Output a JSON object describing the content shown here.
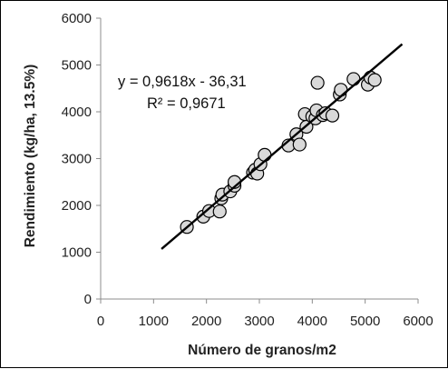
{
  "chart_data": {
    "type": "scatter",
    "title": "",
    "xlabel": "Número de granos/m2",
    "ylabel": "Rendimiento (kg/ha, 13.5%)",
    "xlim": [
      0,
      6000
    ],
    "ylim": [
      0,
      6000
    ],
    "x_ticks": [
      "0",
      "1000",
      "2000",
      "3000",
      "4000",
      "5000",
      "6000"
    ],
    "y_ticks": [
      "0",
      "1000",
      "2000",
      "3000",
      "4000",
      "5000",
      "6000"
    ],
    "grid": false,
    "legend": "none",
    "point_color": "#d9d9d9",
    "point_edge_color": "#000000",
    "points": [
      [
        1630,
        1540
      ],
      [
        1940,
        1760
      ],
      [
        2050,
        1880
      ],
      [
        2250,
        1870
      ],
      [
        2280,
        2150
      ],
      [
        2300,
        2230
      ],
      [
        2450,
        2300
      ],
      [
        2530,
        2420
      ],
      [
        2530,
        2500
      ],
      [
        2880,
        2700
      ],
      [
        2920,
        2760
      ],
      [
        2960,
        2680
      ],
      [
        3020,
        2880
      ],
      [
        3100,
        3080
      ],
      [
        3550,
        3280
      ],
      [
        3700,
        3520
      ],
      [
        3760,
        3300
      ],
      [
        3860,
        3950
      ],
      [
        3890,
        3680
      ],
      [
        4000,
        3900
      ],
      [
        4060,
        3860
      ],
      [
        4080,
        4030
      ],
      [
        4100,
        4620
      ],
      [
        4200,
        3930
      ],
      [
        4250,
        3970
      ],
      [
        4380,
        3920
      ],
      [
        4520,
        4370
      ],
      [
        4540,
        4470
      ],
      [
        4780,
        4700
      ],
      [
        5050,
        4580
      ],
      [
        5100,
        4730
      ],
      [
        5180,
        4680
      ]
    ],
    "trendline": {
      "x_range": [
        1150,
        5700
      ],
      "slope": 0.9618,
      "intercept": -36.31,
      "color": "#000000"
    },
    "annotations": {
      "equation": "y = 0,9618x - 36,31",
      "r_squared": "R² = 0,9671"
    }
  }
}
